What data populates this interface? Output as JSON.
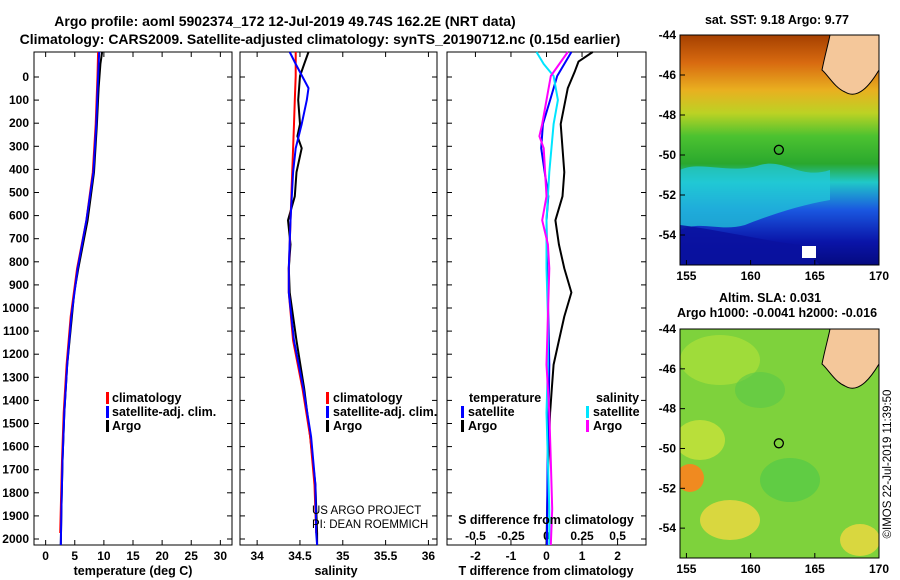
{
  "title": {
    "line1": "Argo profile: aoml 5902374_172 12-Jul-2019 49.74S 162.2E (NRT data)",
    "line2": "Climatology: CARS2009. Satellite-adjusted climatology: synTS_20190712.nc (0.15d earlier)"
  },
  "depth_ticks": [
    "0",
    "100",
    "200",
    "300",
    "400",
    "500",
    "600",
    "700",
    "800",
    "900",
    "1000",
    "1100",
    "1200",
    "1300",
    "1400",
    "1500",
    "1600",
    "1700",
    "1800",
    "1900",
    "2000"
  ],
  "colors": {
    "climatology": "#ff0000",
    "satellite": "#0000ff",
    "argo": "#000000",
    "sat_salinity": "#00e5ff",
    "argo_salinity": "#ff00ff"
  },
  "chart_data": [
    {
      "type": "line",
      "title": "",
      "xlabel": "temperature (deg C)",
      "ylabel": "depth",
      "xlim": [
        -2,
        32
      ],
      "ylim": [
        2050,
        0
      ],
      "xticks": [
        "0",
        "5",
        "10",
        "15",
        "20",
        "25",
        "30"
      ],
      "legend": [
        "climatology",
        "satellite-adj. clim.",
        "Argo"
      ],
      "series": [
        {
          "name": "climatology",
          "color": "#ff0000",
          "depth": [
            0,
            100,
            300,
            500,
            700,
            900,
            1100,
            1300,
            1500,
            1700,
            1900,
            2000
          ],
          "values": [
            9.0,
            8.9,
            8.6,
            8.1,
            7.0,
            5.4,
            4.3,
            3.6,
            3.1,
            2.8,
            2.6,
            2.5
          ]
        },
        {
          "name": "satellite-adj. clim.",
          "color": "#0000ff",
          "depth": [
            0,
            100,
            300,
            500,
            700,
            900,
            1100,
            1300,
            1500,
            1700,
            1900,
            2050
          ],
          "values": [
            9.2,
            9.0,
            8.7,
            8.2,
            7.0,
            5.5,
            4.4,
            3.7,
            3.2,
            2.9,
            2.7,
            2.6
          ]
        },
        {
          "name": "Argo",
          "color": "#000000",
          "depth": [
            0,
            50,
            150,
            300,
            500,
            700,
            900,
            1000,
            1100,
            1300,
            1500,
            1700,
            1900,
            2050
          ],
          "values": [
            9.7,
            9.4,
            9.1,
            8.8,
            8.3,
            7.2,
            5.6,
            4.9,
            4.5,
            3.7,
            3.2,
            2.9,
            2.7,
            2.6
          ]
        }
      ]
    },
    {
      "type": "line",
      "title": "",
      "xlabel": "salinity",
      "ylabel": "depth",
      "xlim": [
        33.8,
        36.1
      ],
      "ylim": [
        2050,
        0
      ],
      "xticks": [
        "34",
        "34.5",
        "35",
        "35.5",
        "36"
      ],
      "legend": [
        "climatology",
        "satellite-adj. clim.",
        "Argo"
      ],
      "annotations": [
        "US ARGO PROJECT",
        "PI: DEAN ROEMMICH"
      ],
      "series": [
        {
          "name": "climatology",
          "color": "#ff0000",
          "depth": [
            0,
            100,
            200,
            300,
            400,
            500,
            600,
            700,
            800,
            900,
            1000,
            1200,
            1400,
            1600,
            1800,
            2000
          ],
          "values": [
            34.45,
            34.45,
            34.44,
            34.43,
            34.42,
            34.41,
            34.4,
            34.39,
            34.38,
            34.37,
            34.37,
            34.42,
            34.53,
            34.62,
            34.67,
            34.69
          ]
        },
        {
          "name": "satellite-adj. clim.",
          "color": "#0000ff",
          "depth": [
            0,
            50,
            150,
            200,
            300,
            400,
            500,
            700,
            900,
            1000,
            1200,
            1400,
            1600,
            1800,
            2000,
            2050
          ],
          "values": [
            34.38,
            34.45,
            34.6,
            34.58,
            34.52,
            34.45,
            34.42,
            34.39,
            34.37,
            34.37,
            34.43,
            34.54,
            34.63,
            34.68,
            34.69,
            34.7
          ]
        },
        {
          "name": "Argo",
          "color": "#000000",
          "depth": [
            0,
            50,
            100,
            200,
            300,
            350,
            400,
            500,
            600,
            700,
            800,
            900,
            1000,
            1100,
            1200,
            1400,
            1600,
            1800,
            2000,
            2050
          ],
          "values": [
            34.6,
            34.55,
            34.5,
            34.48,
            34.5,
            34.47,
            34.52,
            34.46,
            34.44,
            34.36,
            34.39,
            34.37,
            34.38,
            34.42,
            34.46,
            34.55,
            34.62,
            34.68,
            34.7,
            34.7
          ]
        }
      ]
    },
    {
      "type": "line",
      "title": "",
      "xlabel": "T difference from climatology",
      "xlabel2": "S difference from climatology",
      "ylabel": "depth",
      "xlim": [
        -2.8,
        2.8
      ],
      "ylim": [
        2050,
        0
      ],
      "xticks": [
        "-2",
        "-1",
        "0",
        "1",
        "2"
      ],
      "xticks_s": [
        "-0.5",
        "-0.25",
        "0",
        "0.25",
        "0.5"
      ],
      "legend_t_title": "temperature",
      "legend_s_title": "salinity",
      "legend_t": [
        "satellite",
        "Argo"
      ],
      "legend_s": [
        "satellite",
        "Argo"
      ],
      "series": [
        {
          "name": "temperature satellite",
          "color": "#0000ff",
          "depth": [
            0,
            50,
            100,
            200,
            300,
            400,
            500,
            600,
            700,
            900,
            1100,
            1300,
            1500,
            1700,
            1900,
            2050
          ],
          "values": [
            0.7,
            0.5,
            0.3,
            0.1,
            -0.1,
            -0.15,
            -0.05,
            0.05,
            0.0,
            0.02,
            0.05,
            0.08,
            0.06,
            0.03,
            0.02,
            0.01
          ]
        },
        {
          "name": "temperature Argo",
          "color": "#000000",
          "depth": [
            0,
            40,
            80,
            150,
            300,
            500,
            600,
            700,
            800,
            900,
            1000,
            1100,
            1200,
            1300,
            1400,
            1500,
            1700,
            1900,
            2050
          ],
          "values": [
            1.3,
            0.9,
            0.8,
            0.6,
            0.4,
            0.5,
            0.45,
            0.25,
            0.35,
            0.5,
            0.7,
            0.5,
            0.35,
            0.2,
            0.15,
            0.1,
            0.05,
            0.02,
            0.0
          ]
        },
        {
          "name": "salinity satellite",
          "color": "#00e5ff",
          "depth": [
            0,
            50,
            100,
            200,
            300,
            500,
            700,
            900,
            1100,
            1300,
            1500,
            1700,
            1900,
            2050
          ],
          "values": [
            -0.07,
            -0.02,
            0.05,
            0.08,
            0.05,
            0.02,
            0.0,
            0.0,
            0.01,
            0.01,
            0.0,
            0.01,
            0.02,
            0.02
          ]
        },
        {
          "name": "salinity Argo",
          "color": "#ff00ff",
          "depth": [
            0,
            100,
            200,
            300,
            350,
            400,
            500,
            600,
            700,
            800,
            900,
            1100,
            1300,
            1500,
            1700,
            1900,
            2050
          ],
          "values": [
            0.15,
            0.03,
            0.0,
            -0.03,
            -0.05,
            -0.02,
            -0.01,
            0.0,
            -0.03,
            0.01,
            0.02,
            0.01,
            0.0,
            0.02,
            0.03,
            0.04,
            0.03
          ]
        }
      ]
    },
    {
      "type": "heatmap",
      "title": "sat. SST: 9.18 Argo: 9.77",
      "xlim": [
        154.5,
        170
      ],
      "ylim": [
        -55.5,
        -44
      ],
      "xticks": [
        "155",
        "160",
        "165",
        "170"
      ],
      "yticks": [
        "-44",
        "-46",
        "-48",
        "-50",
        "-52",
        "-54"
      ],
      "marker": {
        "lon": 162.2,
        "lat": -49.74
      }
    },
    {
      "type": "heatmap",
      "title_line1": "Altim. SLA: 0.031",
      "title_line2": "Argo h1000: -0.0041 h2000: -0.016",
      "xlim": [
        154.5,
        170
      ],
      "ylim": [
        -55.5,
        -44
      ],
      "xticks": [
        "155",
        "160",
        "165",
        "170"
      ],
      "yticks": [
        "-44",
        "-46",
        "-48",
        "-50",
        "-52",
        "-54"
      ],
      "marker": {
        "lon": 162.2,
        "lat": -49.74
      },
      "side_text": "©IMOS 22-Jul-2019 11:39:50"
    }
  ]
}
